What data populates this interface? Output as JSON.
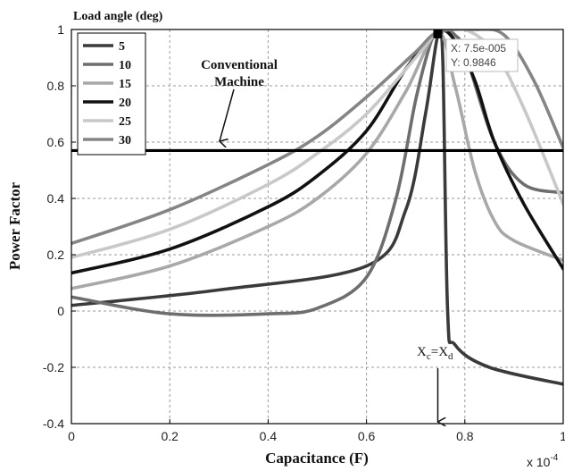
{
  "chart_data": {
    "type": "line",
    "xlabel": "Capacitance (F)",
    "ylabel": "Power Factor",
    "x_multiplier": "x 10",
    "x_multiplier_exp": "-4",
    "xlim": [
      0,
      1
    ],
    "ylim": [
      -0.4,
      1
    ],
    "xticks": [
      0,
      0.2,
      0.4,
      0.6,
      0.8,
      1
    ],
    "yticks": [
      -0.4,
      -0.2,
      0,
      0.2,
      0.4,
      0.6,
      0.8,
      1
    ],
    "grid": true,
    "legend": {
      "title": "Load angle (deg)",
      "placement": "top-left"
    },
    "series": [
      {
        "name": "5",
        "color": "#3a3a3a",
        "x": [
          0.0,
          0.3,
          0.6,
          0.68,
          0.72,
          0.745,
          0.755,
          0.765,
          0.78,
          0.85,
          1.0
        ],
        "y": [
          0.02,
          0.075,
          0.16,
          0.36,
          0.7,
          0.98,
          0.9,
          0.0,
          -0.12,
          -0.2,
          -0.26
        ]
      },
      {
        "name": "10",
        "color": "#6e6e6e",
        "x": [
          0.0,
          0.2,
          0.4,
          0.5,
          0.6,
          0.66,
          0.7,
          0.73,
          0.745,
          0.76,
          0.78,
          0.8,
          0.86,
          0.92,
          1.0
        ],
        "y": [
          0.05,
          -0.01,
          -0.01,
          0.01,
          0.12,
          0.4,
          0.75,
          0.95,
          1.0,
          1.0,
          0.98,
          0.92,
          0.6,
          0.45,
          0.42
        ]
      },
      {
        "name": "15",
        "color": "#a8a8a8",
        "x": [
          0.0,
          0.2,
          0.4,
          0.5,
          0.6,
          0.68,
          0.745,
          0.78,
          0.82,
          0.86,
          0.9,
          1.0
        ],
        "y": [
          0.08,
          0.16,
          0.3,
          0.4,
          0.56,
          0.78,
          0.99,
          0.8,
          0.5,
          0.32,
          0.25,
          0.18
        ]
      },
      {
        "name": "20",
        "color": "#111111",
        "x": [
          0.0,
          0.2,
          0.4,
          0.5,
          0.6,
          0.68,
          0.745,
          0.78,
          0.82,
          0.86,
          0.92,
          1.0
        ],
        "y": [
          0.135,
          0.22,
          0.37,
          0.48,
          0.64,
          0.86,
          0.99,
          0.96,
          0.82,
          0.6,
          0.38,
          0.15
        ]
      },
      {
        "name": "25",
        "color": "#c8c8c8",
        "x": [
          0.0,
          0.2,
          0.4,
          0.5,
          0.6,
          0.7,
          0.745,
          0.8,
          0.86,
          0.92,
          1.0
        ],
        "y": [
          0.19,
          0.29,
          0.45,
          0.56,
          0.7,
          0.9,
          0.99,
          1.0,
          0.92,
          0.72,
          0.38
        ]
      },
      {
        "name": "30",
        "color": "#858585",
        "x": [
          0.0,
          0.2,
          0.4,
          0.5,
          0.6,
          0.7,
          0.745,
          0.82,
          0.88,
          0.94,
          1.0
        ],
        "y": [
          0.24,
          0.36,
          0.52,
          0.62,
          0.76,
          0.92,
          0.99,
          1.0,
          0.98,
          0.82,
          0.58
        ]
      }
    ],
    "reference_line": {
      "y": 0.57,
      "label_line1": "Conventional",
      "label_line2": "Machine",
      "color": "#000000"
    },
    "datatip": {
      "x": 0.745,
      "y": 0.9846,
      "x_text": "X: 7.5e-005",
      "y_text": "Y: 0.9846"
    },
    "vertical_marker": {
      "x": 0.745,
      "label_main1": "X",
      "label_sub1": "c",
      "label_eq": "=",
      "label_main2": "X",
      "label_sub2": "d"
    }
  }
}
